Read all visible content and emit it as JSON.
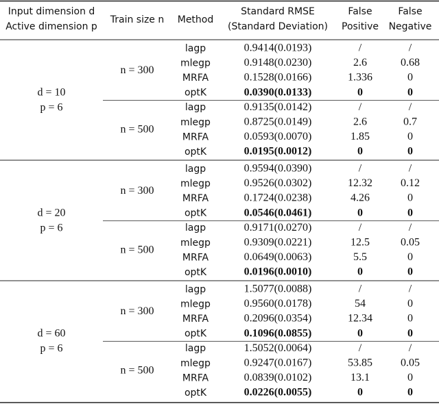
{
  "header": [
    [
      "Input dimension d",
      "Active dimension p"
    ],
    [
      "Train size n"
    ],
    [
      "Method"
    ],
    [
      "Standard RMSE",
      "(Standard Deviation)"
    ],
    [
      "False",
      "Positive"
    ],
    [
      "False",
      "Negative"
    ]
  ],
  "groups": [
    {
      "d": "d = 10",
      "p": "p = 6",
      "subgroups": [
        {
          "n": "n = 300",
          "rows": [
            [
              "lagp",
              "0.9414(0.0193)",
              "/",
              "/"
            ],
            [
              "mlegp",
              "0.9148(0.0230)",
              "2.6",
              "0.68"
            ],
            [
              "MRFA",
              "0.1528(0.0166)",
              "1.336",
              "0"
            ],
            [
              "optK",
              "0.0390(0.0133)",
              "0",
              "0"
            ]
          ]
        },
        {
          "n": "n = 500",
          "rows": [
            [
              "lagp",
              "0.9135(0.0142)",
              "/",
              "/"
            ],
            [
              "mlegp",
              "0.8725(0.0149)",
              "2.6",
              "0.7"
            ],
            [
              "MRFA",
              "0.0593(0.0070)",
              "1.85",
              "0"
            ],
            [
              "optK",
              "0.0195(0.0012)",
              "0",
              "0"
            ]
          ]
        }
      ]
    },
    {
      "d": "d = 20",
      "p": "p = 6",
      "subgroups": [
        {
          "n": "n = 300",
          "rows": [
            [
              "lagp",
              "0.9594(0.0390)",
              "/",
              "/"
            ],
            [
              "mlegp",
              "0.9526(0.0302)",
              "12.32",
              "0.12"
            ],
            [
              "MRFA",
              "0.1724(0.0238)",
              "4.26",
              "0"
            ],
            [
              "optK",
              "0.0546(0.0461)",
              "0",
              "0"
            ]
          ]
        },
        {
          "n": "n = 500",
          "rows": [
            [
              "lagp",
              "0.9171(0.0270)",
              "/",
              "/"
            ],
            [
              "mlegp",
              "0.9309(0.0221)",
              "12.5",
              "0.05"
            ],
            [
              "MRFA",
              "0.0649(0.0063)",
              "5.5",
              "0"
            ],
            [
              "optK",
              "0.0196(0.0010)",
              "0",
              "0"
            ]
          ]
        }
      ]
    },
    {
      "d": "d = 60",
      "p": "p = 6",
      "subgroups": [
        {
          "n": "n = 300",
          "rows": [
            [
              "lagp",
              "1.5077(0.0088)",
              "/",
              "/"
            ],
            [
              "mlegp",
              "0.9560(0.0178)",
              "54",
              "0"
            ],
            [
              "MRFA",
              "0.2096(0.0354)",
              "12.34",
              "0"
            ],
            [
              "optK",
              "0.1096(0.0855)",
              "0",
              "0"
            ]
          ]
        },
        {
          "n": "n = 500",
          "rows": [
            [
              "lagp",
              "1.5052(0.0064)",
              "/",
              "/"
            ],
            [
              "mlegp",
              "0.9247(0.0167)",
              "53.85",
              "0.05"
            ],
            [
              "MRFA",
              "0.0839(0.0102)",
              "13.1",
              "0"
            ],
            [
              "optK",
              "0.0226(0.0055)",
              "0",
              "0"
            ]
          ]
        }
      ]
    }
  ]
}
